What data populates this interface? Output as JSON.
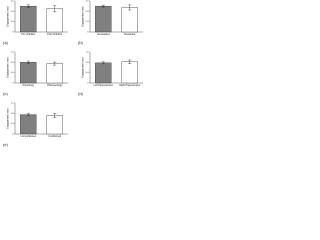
{
  "chart_data": [
    {
      "type": "bar",
      "panel_label": "(a)",
      "ylabel": "Engagement ratio",
      "categories": [
        "Pre Inhibition",
        "Post Inhibition"
      ],
      "values": [
        1.0,
        0.9
      ],
      "errors": [
        0.05,
        0.12
      ],
      "colors": [
        "#808080",
        "#ffffff"
      ],
      "ylim": [
        0,
        1.2
      ],
      "yticks": [
        0,
        0.4,
        0.8,
        1.2
      ]
    },
    {
      "type": "bar",
      "panel_label": "(b)",
      "ylabel": "Engagement ratio",
      "categories": [
        "Unrewarded",
        "Rewarded"
      ],
      "values": [
        1.0,
        0.95
      ],
      "errors": [
        0.04,
        0.1
      ],
      "colors": [
        "#808080",
        "#ffffff"
      ],
      "ylim": [
        0,
        1.2
      ],
      "yticks": [
        0,
        0.4,
        0.8,
        1.2
      ]
    },
    {
      "type": "bar",
      "panel_label": "(c)",
      "ylabel": "Engagement ratio",
      "categories": [
        "Physiology",
        "Pharmacology"
      ],
      "values": [
        0.8,
        0.75
      ],
      "errors": [
        0.05,
        0.06
      ],
      "colors": [
        "#808080",
        "#ffffff"
      ],
      "ylim": [
        0,
        1.2
      ],
      "yticks": [
        0,
        0.4,
        0.8,
        1.2
      ]
    },
    {
      "type": "bar",
      "panel_label": "(d)",
      "ylabel": "Engagement ratio",
      "categories": [
        "Left Hippocampus",
        "Right Hippocampus"
      ],
      "values": [
        0.78,
        0.82
      ],
      "errors": [
        0.04,
        0.07
      ],
      "colors": [
        "#808080",
        "#ffffff"
      ],
      "ylim": [
        0,
        1.2
      ],
      "yticks": [
        0,
        0.4,
        0.8,
        1.2
      ]
    },
    {
      "type": "bar",
      "panel_label": "(e)",
      "ylabel": "Engagement ratio",
      "categories": [
        "Unconditioned",
        "Conditioned"
      ],
      "values": [
        0.75,
        0.72
      ],
      "errors": [
        0.05,
        0.08
      ],
      "colors": [
        "#808080",
        "#ffffff"
      ],
      "ylim": [
        0,
        1.2
      ],
      "yticks": [
        0,
        0.4,
        0.8,
        1.2
      ]
    }
  ]
}
